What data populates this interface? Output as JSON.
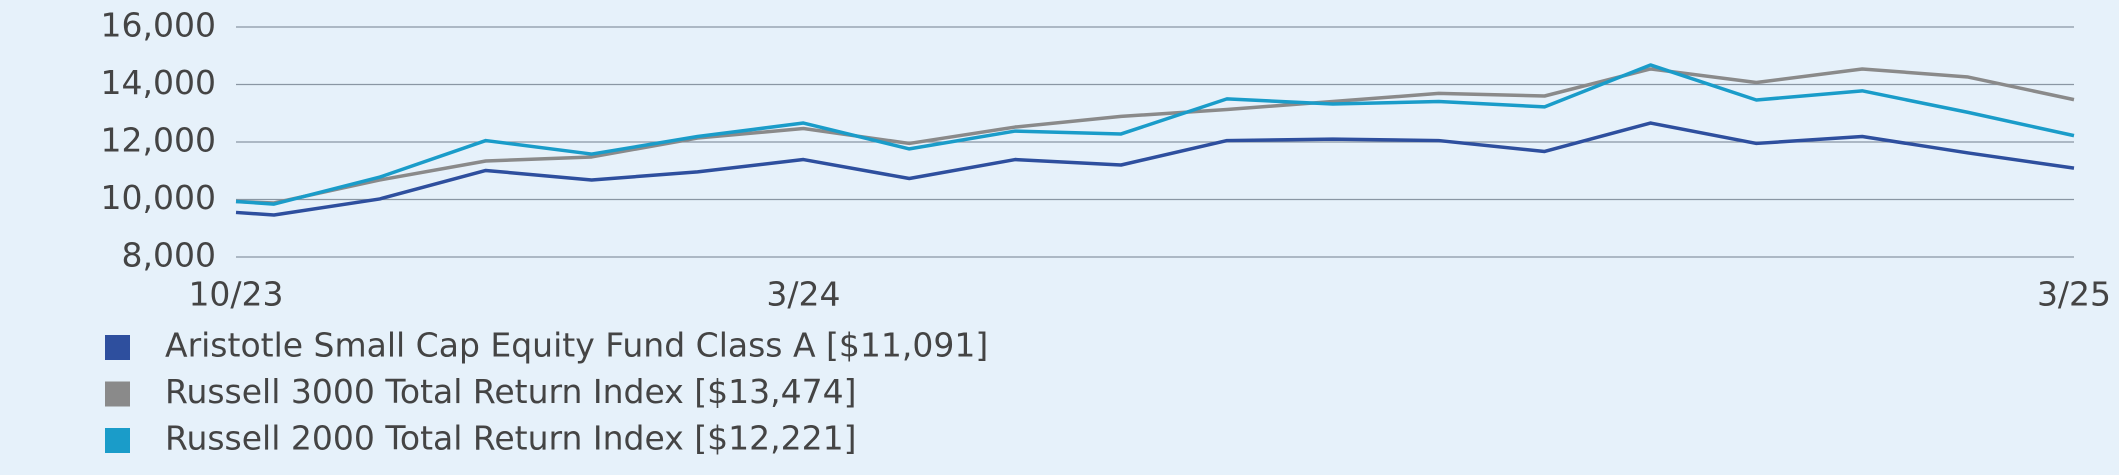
{
  "chart_data": {
    "type": "line",
    "categories": [
      "10/23",
      null,
      null,
      null,
      null,
      null,
      "3/24",
      null,
      null,
      null,
      null,
      null,
      null,
      null,
      null,
      null,
      null,
      null,
      "3/25"
    ],
    "series": [
      {
        "name": "Aristotle Small Cap Equity Fund Class A [$11,091]",
        "color": "#2e4f9e",
        "values": [
          9550,
          9460,
          10020,
          11010,
          10680,
          10960,
          11390,
          10730,
          11390,
          11200,
          12050,
          12100,
          12050,
          11670,
          12660,
          11950,
          12190,
          11620,
          11091
        ]
      },
      {
        "name": "Russell 3000 Total Return Index [$13,474]",
        "color": "#8a8a8a",
        "values": [
          9930,
          9880,
          10680,
          11340,
          11480,
          12140,
          12470,
          11950,
          12520,
          12890,
          13130,
          13410,
          13690,
          13600,
          14540,
          14070,
          14540,
          14260,
          13474
        ]
      },
      {
        "name": "Russell 2000 Total Return Index [$12,221]",
        "color": "#1a9cc9",
        "values": [
          9930,
          9840,
          10780,
          12050,
          11580,
          12190,
          12660,
          11760,
          12380,
          12280,
          13500,
          13320,
          13410,
          13220,
          14680,
          13460,
          13780,
          13030,
          12221
        ]
      }
    ],
    "ylim": [
      8000,
      16000
    ],
    "yticks": [
      {
        "value": 8000,
        "label": "8,000"
      },
      {
        "value": 10000,
        "label": "10,000"
      },
      {
        "value": 12000,
        "label": "12,000"
      },
      {
        "value": 14000,
        "label": "14,000"
      },
      {
        "value": 16000,
        "label": "16,000"
      }
    ],
    "grid": true
  }
}
